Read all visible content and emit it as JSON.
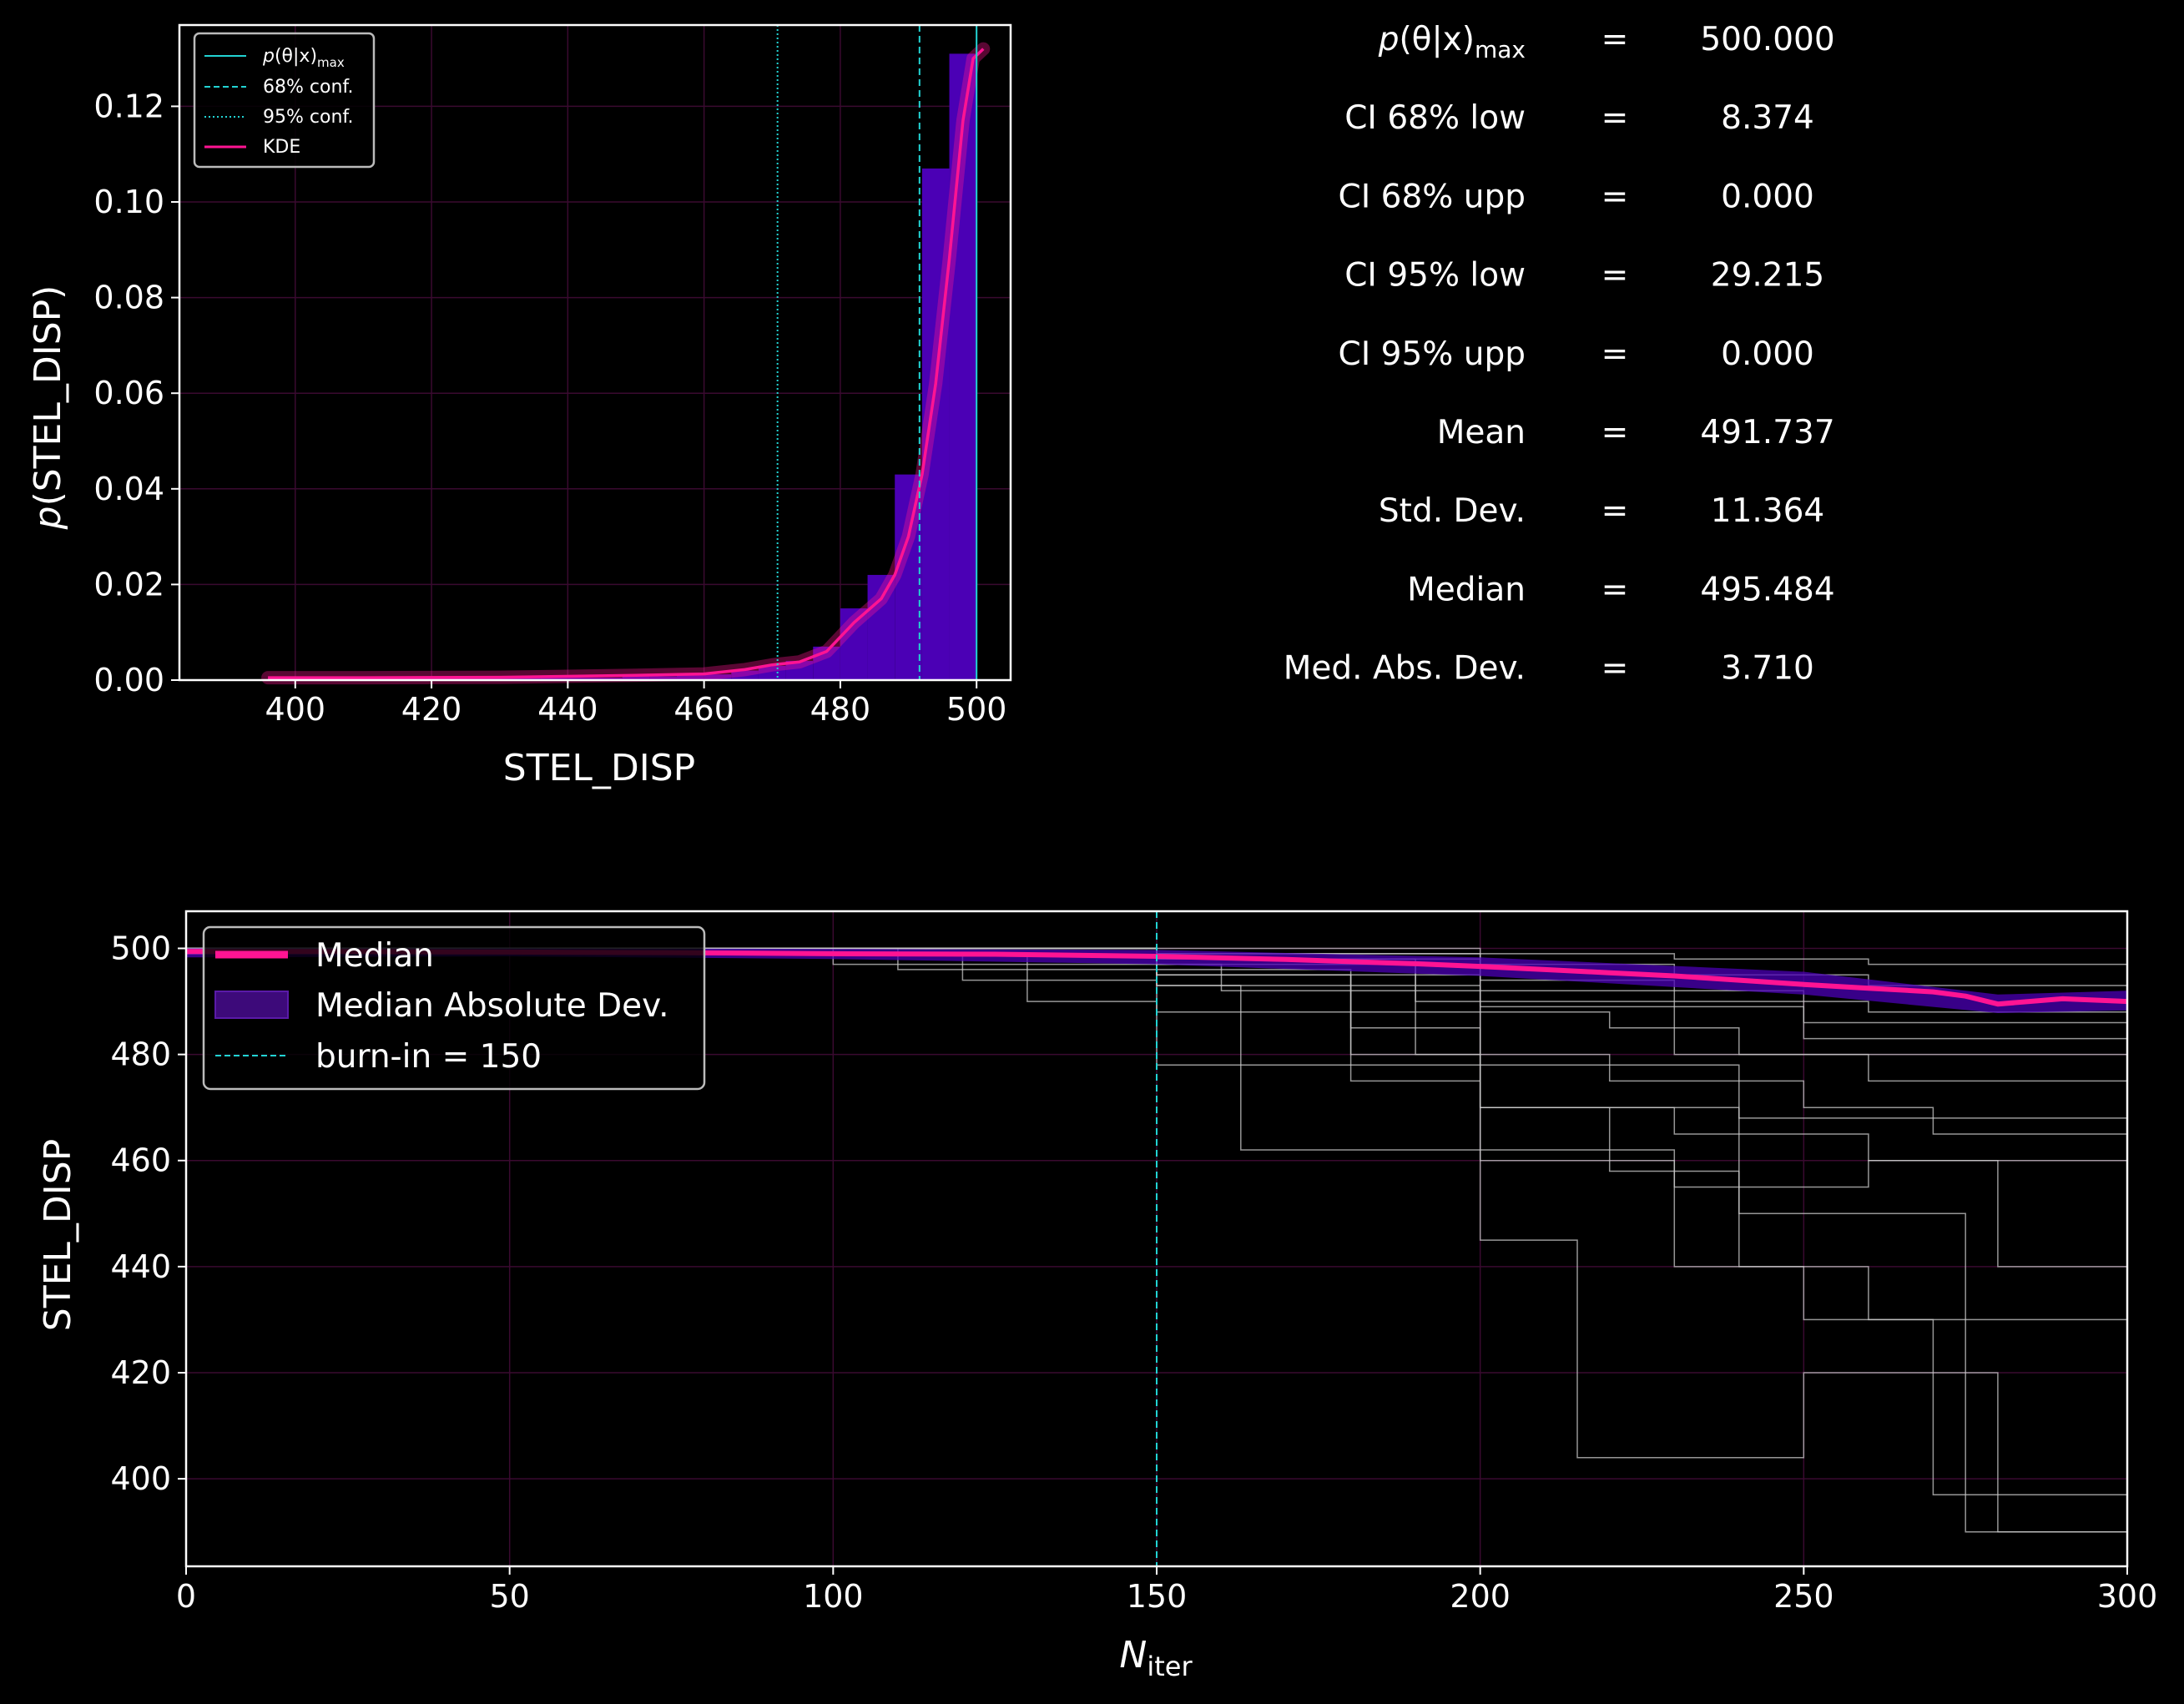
{
  "chart_data": [
    {
      "type": "histogram",
      "xlabel": "STEL_DISP",
      "ylabel_italic": "p",
      "ylabel_rest": "(STEL_DISP)",
      "xlim": [
        383,
        505
      ],
      "ylim": [
        0,
        0.137
      ],
      "xticks": [
        400,
        420,
        440,
        460,
        480,
        500
      ],
      "yticks": [
        0.0,
        0.02,
        0.04,
        0.06,
        0.08,
        0.1,
        0.12
      ],
      "grid": true,
      "bins": {
        "edges": [
          396,
          400,
          404,
          408,
          412,
          416,
          420,
          424,
          428,
          432,
          436,
          440,
          444,
          448,
          452,
          456,
          460,
          464,
          468,
          472,
          476,
          480,
          484,
          488,
          492,
          496,
          500
        ],
        "values": [
          0.0005,
          0.0005,
          0.0005,
          0.0005,
          0.0005,
          0.0005,
          0.0005,
          0.0005,
          0.0005,
          0.0005,
          0.0005,
          0.0005,
          0.0005,
          0.0008,
          0.0008,
          0.001,
          0.0012,
          0.002,
          0.003,
          0.004,
          0.007,
          0.015,
          0.022,
          0.043,
          0.107,
          0.131
        ]
      },
      "kde": {
        "x": [
          396,
          410,
          430,
          450,
          460,
          466,
          470,
          474,
          478,
          482,
          486,
          488,
          490,
          492,
          494,
          496,
          498,
          499.5,
          501
        ],
        "y": [
          0.0005,
          0.0005,
          0.0006,
          0.001,
          0.0013,
          0.0022,
          0.0032,
          0.0038,
          0.006,
          0.012,
          0.017,
          0.022,
          0.03,
          0.043,
          0.062,
          0.088,
          0.117,
          0.13,
          0.132
        ]
      },
      "vlines": [
        {
          "name": "p_max",
          "x": 500.0,
          "style": "solid"
        },
        {
          "name": "conf68",
          "x": 491.626,
          "style": "dashed"
        },
        {
          "name": "conf95",
          "x": 470.785,
          "style": "dotted"
        }
      ],
      "legend": {
        "placement": "upper-left",
        "entries": [
          {
            "label_italic": "p",
            "label_rest": "(θ|x)",
            "label_sub": "max",
            "color": "#22d3d3",
            "style": "solid"
          },
          {
            "label": "68% conf.",
            "color": "#22d3d3",
            "style": "dashed"
          },
          {
            "label": "95% conf.",
            "color": "#22d3d3",
            "style": "dotted"
          },
          {
            "label": "KDE",
            "color": "#ff1493",
            "style": "solid"
          }
        ]
      },
      "colors": {
        "bars": "#4b00b5",
        "kde": "#ff1493",
        "lines": "#22d3d3",
        "grid": "#3a0a30"
      }
    },
    {
      "type": "line",
      "xlabel_italic": "N",
      "xlabel_sub": "iter",
      "ylabel": "STEL_DISP",
      "xlim": [
        0,
        300
      ],
      "ylim": [
        383.5,
        507
      ],
      "xticks": [
        0,
        50,
        100,
        150,
        200,
        250,
        300
      ],
      "yticks": [
        400,
        420,
        440,
        460,
        480,
        500
      ],
      "grid": true,
      "burn_in": 150,
      "median": {
        "x": [
          0,
          25,
          50,
          75,
          100,
          125,
          150,
          160,
          170,
          180,
          190,
          200,
          210,
          220,
          230,
          240,
          250,
          260,
          270,
          275,
          280,
          290,
          300
        ],
        "y": [
          499.4,
          499.4,
          499.3,
          499.2,
          499.0,
          498.9,
          498.5,
          498.2,
          497.9,
          497.5,
          497.1,
          496.6,
          496.0,
          495.4,
          494.8,
          494.0,
          493.2,
          492.5,
          491.8,
          491.0,
          489.5,
          490.5,
          490.0
        ]
      },
      "mad": {
        "x": [
          0,
          50,
          100,
          150,
          200,
          250,
          280,
          300
        ],
        "lower": [
          498.3,
          498.5,
          498.0,
          497.0,
          494.8,
          491.3,
          487.8,
          488.3
        ],
        "upper": [
          500.0,
          500.0,
          499.9,
          499.7,
          498.3,
          495.6,
          491.3,
          492.0
        ]
      },
      "walkers": [
        {
          "x": [
            0,
            150,
            160,
            200,
            220,
            240,
            300
          ],
          "y": [
            500,
            497,
            492,
            488,
            485,
            480,
            470
          ]
        },
        {
          "x": [
            0,
            120,
            150,
            175,
            200,
            230,
            260,
            300
          ],
          "y": [
            499,
            494,
            478,
            478,
            470,
            465,
            460,
            450
          ]
        },
        {
          "x": [
            0,
            150,
            163,
            200,
            230,
            260,
            280,
            300
          ],
          "y": [
            500,
            493,
            462,
            462,
            455,
            460,
            440,
            428
          ]
        },
        {
          "x": [
            0,
            150,
            180,
            200,
            210,
            240,
            260,
            300
          ],
          "y": [
            500,
            495,
            480,
            470,
            470,
            440,
            430,
            412
          ]
        },
        {
          "x": [
            0,
            150,
            180,
            200,
            215,
            250,
            280,
            300
          ],
          "y": [
            500,
            495,
            485,
            445,
            404,
            420,
            390,
            400
          ]
        },
        {
          "x": [
            0,
            150,
            180,
            200,
            230,
            250,
            270,
            300
          ],
          "y": [
            500,
            496,
            475,
            460,
            440,
            430,
            397,
            427
          ]
        },
        {
          "x": [
            0,
            150,
            190,
            200,
            220,
            240,
            275,
            300
          ],
          "y": [
            500,
            497,
            490,
            470,
            458,
            450,
            390,
            460
          ]
        },
        {
          "x": [
            0,
            150,
            200,
            230,
            260,
            300
          ],
          "y": [
            500,
            498,
            490,
            480,
            475,
            465
          ]
        },
        {
          "x": [
            0,
            150,
            200,
            230,
            260,
            300
          ],
          "y": [
            500,
            499,
            494,
            490,
            488,
            480
          ]
        },
        {
          "x": [
            0,
            150,
            200,
            230,
            260,
            300
          ],
          "y": [
            500,
            499,
            497,
            495,
            493,
            490
          ]
        },
        {
          "x": [
            0,
            150,
            200,
            230,
            260,
            300
          ],
          "y": [
            500,
            500,
            499,
            498,
            497,
            496
          ]
        },
        {
          "x": [
            0,
            100,
            150,
            200,
            250,
            300
          ],
          "y": [
            500,
            497,
            495,
            489,
            483,
            476
          ]
        },
        {
          "x": [
            0,
            130,
            150,
            200,
            240,
            300
          ],
          "y": [
            499,
            490,
            488,
            478,
            468,
            458
          ]
        },
        {
          "x": [
            0,
            110,
            150,
            200,
            250,
            300
          ],
          "y": [
            500,
            496,
            493,
            492,
            486,
            473
          ]
        },
        {
          "x": [
            0,
            150,
            190,
            220,
            250,
            270,
            300
          ],
          "y": [
            500,
            498,
            480,
            475,
            470,
            465,
            460
          ]
        }
      ],
      "legend": {
        "placement": "upper-left",
        "entries": [
          {
            "label": "Median",
            "color": "#ff1493",
            "style": "thick"
          },
          {
            "label": "Median Absolute Dev.",
            "color": "#3d0a7a",
            "style": "patch"
          },
          {
            "label": "burn-in = 150",
            "color": "#22d3d3",
            "style": "dashed"
          }
        ]
      },
      "colors": {
        "median": "#ff1493",
        "mad": "#4b00b5",
        "walkers": "#c8c8c8",
        "burn_in": "#22d3d3",
        "grid": "#3a0a30"
      }
    }
  ],
  "stats": [
    {
      "label_italic": "p",
      "label_rest": "(θ|x)",
      "label_sub": "max",
      "eq": "=",
      "value": "500.000"
    },
    {
      "label": "CI 68% low",
      "eq": "=",
      "value": "8.374"
    },
    {
      "label": "CI 68% upp",
      "eq": "=",
      "value": "0.000"
    },
    {
      "label": "CI 95% low",
      "eq": "=",
      "value": "29.215"
    },
    {
      "label": "CI 95% upp",
      "eq": "=",
      "value": "0.000"
    },
    {
      "label": "Mean",
      "eq": "=",
      "value": "491.737"
    },
    {
      "label": "Std.  Dev.",
      "eq": "=",
      "value": "11.364"
    },
    {
      "label": "Median",
      "eq": "=",
      "value": "495.484"
    },
    {
      "label": "Med. Abs. Dev.",
      "eq": "=",
      "value": "3.710"
    }
  ]
}
